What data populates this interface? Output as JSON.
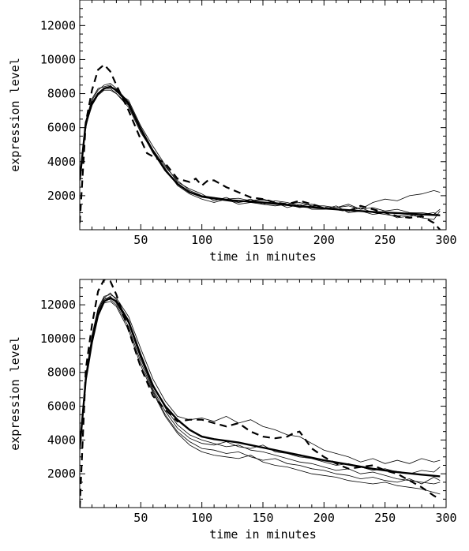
{
  "chart_data": [
    {
      "type": "line",
      "xlabel": "time in minutes",
      "ylabel": "expression level",
      "xlim": [
        0,
        300
      ],
      "ylim": [
        0,
        13500
      ],
      "xticks": [
        50,
        100,
        150,
        200,
        250,
        300
      ],
      "yticks": [
        2000,
        4000,
        6000,
        8000,
        10000,
        12000
      ],
      "series": [
        {
          "style": "fit",
          "x": [
            0,
            5,
            10,
            15,
            20,
            25,
            30,
            40,
            50,
            60,
            70,
            80,
            90,
            100,
            110,
            120,
            130,
            140,
            150,
            160,
            170,
            180,
            190,
            200,
            220,
            240,
            260,
            280,
            295
          ],
          "y": [
            2900,
            6300,
            7400,
            8000,
            8300,
            8400,
            8200,
            7400,
            5900,
            4600,
            3500,
            2700,
            2200,
            1950,
            1850,
            1750,
            1700,
            1650,
            1600,
            1520,
            1450,
            1380,
            1320,
            1250,
            1150,
            1050,
            980,
            900,
            850
          ]
        },
        {
          "style": "dashed",
          "x": [
            0,
            5,
            10,
            15,
            20,
            25,
            30,
            40,
            50,
            55,
            60,
            70,
            80,
            90,
            95,
            100,
            105,
            110,
            115,
            120,
            130,
            140,
            150,
            160,
            170,
            180,
            190,
            200,
            210,
            220,
            230,
            240,
            250,
            260,
            270,
            280,
            290,
            295
          ],
          "y": [
            400,
            6300,
            8200,
            9400,
            9700,
            9300,
            8500,
            7000,
            5300,
            4500,
            4300,
            3900,
            3000,
            2800,
            3000,
            2600,
            2900,
            2900,
            2700,
            2500,
            2200,
            1900,
            1800,
            1600,
            1500,
            1700,
            1500,
            1300,
            1200,
            1100,
            1400,
            1200,
            1000,
            800,
            700,
            800,
            400,
            0
          ]
        },
        {
          "style": "thin",
          "x": [
            0,
            5,
            10,
            15,
            20,
            25,
            30,
            40,
            50,
            60,
            70,
            80,
            90,
            100,
            110,
            120,
            130,
            140,
            150,
            160,
            170,
            180,
            190,
            200,
            210,
            220,
            230,
            240,
            250,
            260,
            270,
            280,
            290,
            295
          ],
          "y": [
            3000,
            6200,
            7600,
            8200,
            8500,
            8600,
            8300,
            7500,
            6000,
            4700,
            3700,
            2900,
            2300,
            2000,
            1900,
            1800,
            1850,
            1700,
            1750,
            1600,
            1500,
            1600,
            1400,
            1400,
            1300,
            1500,
            1200,
            1300,
            1100,
            1200,
            1000,
            1000,
            900,
            1200
          ]
        },
        {
          "style": "thin",
          "x": [
            0,
            5,
            10,
            15,
            20,
            25,
            30,
            40,
            50,
            60,
            70,
            80,
            90,
            100,
            110,
            120,
            130,
            140,
            150,
            160,
            170,
            180,
            190,
            200,
            210,
            220,
            230,
            240,
            250,
            260,
            270,
            280,
            290,
            295
          ],
          "y": [
            3200,
            6100,
            7300,
            7900,
            8200,
            8200,
            8000,
            7300,
            5800,
            4500,
            3500,
            2700,
            2200,
            1900,
            1800,
            1700,
            1600,
            1800,
            1500,
            1700,
            1600,
            1400,
            1500,
            1300,
            1200,
            1100,
            1300,
            1000,
            900,
            800,
            900,
            700,
            600,
            1100
          ]
        },
        {
          "style": "thin",
          "x": [
            0,
            5,
            10,
            15,
            20,
            25,
            30,
            40,
            50,
            60,
            70,
            80,
            90,
            100,
            110,
            120,
            130,
            140,
            150,
            160,
            170,
            180,
            190,
            200,
            210,
            220,
            230,
            240,
            250,
            260,
            270,
            280,
            290,
            295
          ],
          "y": [
            2800,
            6400,
            7700,
            8300,
            8400,
            8500,
            8100,
            7600,
            6100,
            4900,
            3800,
            2800,
            2400,
            2100,
            1700,
            1900,
            1600,
            1700,
            1800,
            1600,
            1300,
            1500,
            1200,
            1200,
            1400,
            1000,
            1100,
            900,
            1000,
            700,
            800,
            900,
            1000,
            800
          ]
        },
        {
          "style": "thin",
          "x": [
            0,
            5,
            10,
            15,
            20,
            25,
            30,
            40,
            50,
            60,
            70,
            80,
            90,
            100,
            110,
            120,
            130,
            140,
            150,
            160,
            170,
            180,
            190,
            200,
            210,
            220,
            230,
            240,
            250,
            260,
            270,
            280,
            290,
            295
          ],
          "y": [
            3100,
            6000,
            7500,
            8000,
            8300,
            8300,
            8000,
            7200,
            5700,
            4600,
            3600,
            2600,
            2100,
            1800,
            1600,
            1800,
            1500,
            1600,
            1500,
            1400,
            1500,
            1300,
            1400,
            1200,
            1300,
            1400,
            1200,
            1600,
            1800,
            1700,
            2000,
            2100,
            2300,
            2200
          ]
        }
      ]
    },
    {
      "type": "line",
      "xlabel": "time in minutes",
      "ylabel": "expression level",
      "xlim": [
        0,
        300
      ],
      "ylim": [
        0,
        13500
      ],
      "xticks": [
        50,
        100,
        150,
        200,
        250,
        300
      ],
      "yticks": [
        2000,
        4000,
        6000,
        8000,
        10000,
        12000
      ],
      "series": [
        {
          "style": "fit",
          "x": [
            0,
            5,
            10,
            15,
            20,
            25,
            30,
            40,
            50,
            60,
            70,
            80,
            90,
            100,
            110,
            120,
            130,
            140,
            150,
            160,
            170,
            180,
            190,
            200,
            220,
            240,
            260,
            280,
            295
          ],
          "y": [
            3500,
            7600,
            9800,
            11400,
            12200,
            12400,
            12200,
            11000,
            9000,
            7200,
            6000,
            5200,
            4600,
            4200,
            4050,
            3950,
            3850,
            3700,
            3550,
            3400,
            3250,
            3100,
            2950,
            2800,
            2550,
            2300,
            2100,
            1950,
            1850
          ]
        },
        {
          "style": "dashed",
          "x": [
            0,
            5,
            10,
            15,
            20,
            25,
            30,
            40,
            50,
            60,
            70,
            80,
            90,
            100,
            110,
            120,
            130,
            140,
            150,
            160,
            170,
            175,
            180,
            190,
            200,
            210,
            220,
            230,
            240,
            250,
            260,
            270,
            280,
            290,
            295
          ],
          "y": [
            0,
            8200,
            10800,
            12800,
            13500,
            13400,
            12600,
            10500,
            8300,
            6600,
            5800,
            5100,
            5200,
            5200,
            5000,
            4800,
            5000,
            4500,
            4200,
            4100,
            4200,
            4400,
            4500,
            3500,
            3000,
            2600,
            2300,
            2400,
            2500,
            2200,
            2000,
            1600,
            1200,
            700,
            500
          ]
        },
        {
          "style": "thin",
          "x": [
            0,
            5,
            10,
            15,
            20,
            25,
            30,
            40,
            50,
            60,
            70,
            80,
            90,
            100,
            110,
            120,
            130,
            140,
            150,
            160,
            170,
            180,
            190,
            200,
            210,
            220,
            230,
            240,
            250,
            260,
            270,
            280,
            290,
            295
          ],
          "y": [
            3800,
            7800,
            10200,
            11800,
            12500,
            12600,
            12400,
            11300,
            9400,
            7600,
            6300,
            5400,
            5200,
            5300,
            5100,
            5400,
            5000,
            5200,
            4800,
            4600,
            4300,
            4200,
            3800,
            3400,
            3200,
            3000,
            2700,
            2900,
            2600,
            2800,
            2600,
            2900,
            2700,
            2800
          ]
        },
        {
          "style": "thin",
          "x": [
            0,
            5,
            10,
            15,
            20,
            25,
            30,
            40,
            50,
            60,
            70,
            80,
            90,
            100,
            110,
            120,
            130,
            140,
            150,
            160,
            170,
            180,
            190,
            200,
            210,
            220,
            230,
            240,
            250,
            260,
            270,
            280,
            290,
            295
          ],
          "y": [
            3300,
            7400,
            9900,
            11500,
            12300,
            12500,
            12100,
            10900,
            8800,
            7000,
            5700,
            4700,
            4100,
            3800,
            3700,
            3900,
            3600,
            3500,
            3700,
            3300,
            3200,
            3000,
            2900,
            2700,
            2500,
            2600,
            2400,
            2200,
            2300,
            2100,
            2000,
            2200,
            2100,
            2400
          ]
        },
        {
          "style": "thin",
          "x": [
            0,
            5,
            10,
            15,
            20,
            25,
            30,
            40,
            50,
            60,
            70,
            80,
            90,
            100,
            110,
            120,
            130,
            140,
            150,
            160,
            170,
            180,
            190,
            200,
            210,
            220,
            230,
            240,
            250,
            260,
            270,
            280,
            290,
            295
          ],
          "y": [
            3600,
            7700,
            10000,
            11600,
            12400,
            12300,
            12000,
            10700,
            8600,
            6900,
            5500,
            4500,
            3900,
            3500,
            3400,
            3200,
            3300,
            3000,
            2800,
            2900,
            2600,
            2500,
            2300,
            2200,
            2000,
            1900,
            1700,
            1800,
            1600,
            1500,
            1700,
            1400,
            1800,
            1600
          ]
        },
        {
          "style": "thin",
          "x": [
            0,
            5,
            10,
            15,
            20,
            25,
            30,
            40,
            50,
            60,
            70,
            80,
            90,
            100,
            110,
            120,
            130,
            140,
            150,
            160,
            170,
            180,
            190,
            200,
            210,
            220,
            230,
            240,
            250,
            260,
            270,
            280,
            290,
            295
          ],
          "y": [
            3400,
            7500,
            9700,
            11300,
            12100,
            12200,
            11900,
            10500,
            8400,
            6800,
            5400,
            4400,
            3700,
            3300,
            3100,
            3000,
            2900,
            3100,
            2700,
            2500,
            2400,
            2200,
            2000,
            1900,
            1800,
            1600,
            1500,
            1400,
            1500,
            1300,
            1200,
            1100,
            900,
            800
          ]
        },
        {
          "style": "thin",
          "x": [
            0,
            5,
            10,
            15,
            20,
            25,
            30,
            40,
            50,
            60,
            70,
            80,
            90,
            100,
            110,
            120,
            130,
            140,
            150,
            160,
            170,
            180,
            190,
            200,
            210,
            220,
            230,
            240,
            250,
            260,
            270,
            280,
            290,
            295
          ],
          "y": [
            3700,
            7900,
            10100,
            11700,
            12400,
            12700,
            12300,
            11100,
            9100,
            7300,
            5900,
            4900,
            4300,
            4000,
            3800,
            3600,
            3700,
            3400,
            3300,
            3100,
            2900,
            2700,
            2600,
            2400,
            2200,
            2300,
            2000,
            2100,
            1900,
            1700,
            1600,
            1500,
            1400,
            1500
          ]
        }
      ]
    }
  ]
}
